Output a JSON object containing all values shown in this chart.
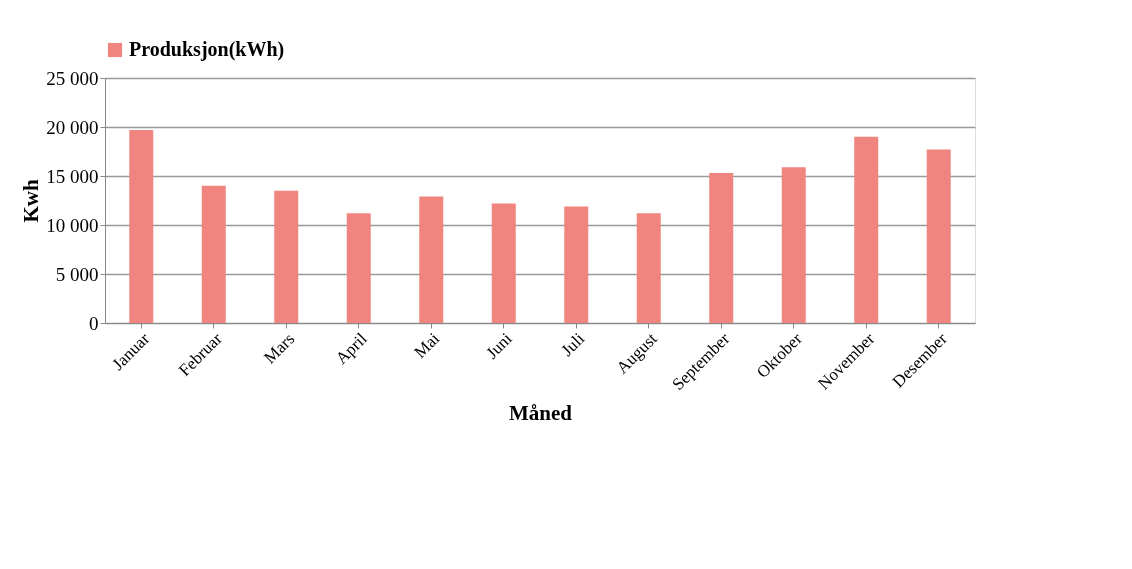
{
  "chart_data": {
    "type": "bar",
    "xlabel": "Måned",
    "ylabel": "Kwh",
    "categories": [
      "Januar",
      "Februar",
      "Mars",
      "April",
      "Mai",
      "Juni",
      "Juli",
      "August",
      "September",
      "Oktober",
      "November",
      "Desember"
    ],
    "series": [
      {
        "name": "Produksjon(kWh)",
        "color": "#f0847e",
        "values": [
          19700,
          14000,
          13500,
          11200,
          12900,
          12200,
          11900,
          11200,
          15300,
          15900,
          19000,
          17700
        ]
      }
    ],
    "ylim": [
      0,
      25000
    ],
    "yticks": [
      {
        "value": 0,
        "label": "0"
      },
      {
        "value": 5000,
        "label": "5 000"
      },
      {
        "value": 10000,
        "label": "10 000"
      },
      {
        "value": 15000,
        "label": "15 000"
      },
      {
        "value": 20000,
        "label": "20 000"
      },
      {
        "value": 25000,
        "label": "25 000"
      }
    ],
    "grid": "y",
    "legend": "top"
  }
}
